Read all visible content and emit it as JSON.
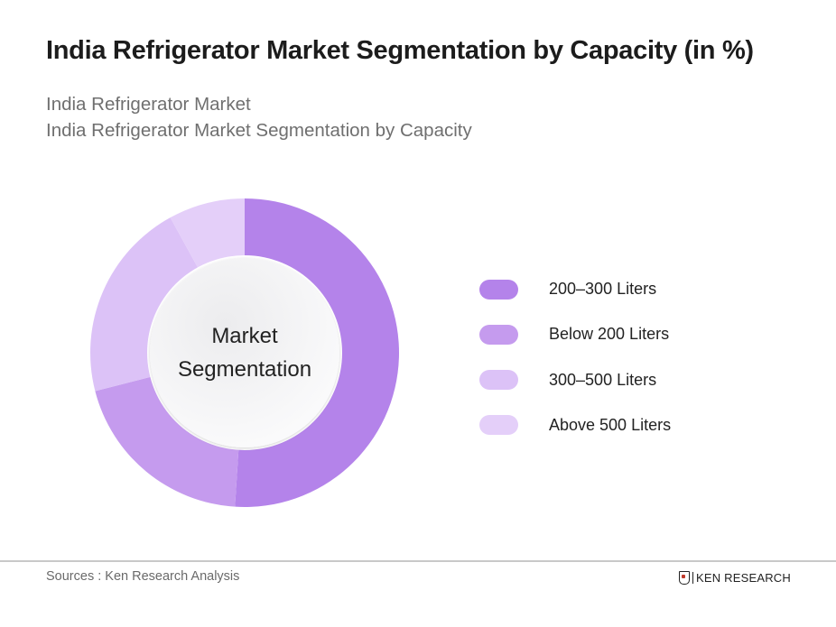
{
  "header": {
    "title": "India Refrigerator Market Segmentation by Capacity (in %)",
    "subtitle_line1": "India Refrigerator Market",
    "subtitle_line2": "India Refrigerator Market Segmentation by Capacity"
  },
  "chart": {
    "center_line1": "Market",
    "center_line2": "Segmentation"
  },
  "legend": [
    {
      "label": "200–300 Liters",
      "color": "#b483ea"
    },
    {
      "label": "Below 200 Liters",
      "color": "#c59bee"
    },
    {
      "label": "300–500 Liters",
      "color": "#dcc2f7"
    },
    {
      "label": "Above 500 Liters",
      "color": "#e4cff9"
    }
  ],
  "footer": {
    "sources": "Sources : Ken Research Analysis",
    "logo_text": "KEN RESEARCH"
  },
  "chart_data": {
    "type": "pie",
    "variant": "donut",
    "title": "India Refrigerator Market Segmentation by Capacity (in %)",
    "subtitle": "India Refrigerator Market — India Refrigerator Market Segmentation by Capacity",
    "center_text": "Market Segmentation",
    "categories": [
      "200–300 Liters",
      "Below 200 Liters",
      "300–500 Liters",
      "Above 500 Liters"
    ],
    "values": [
      51,
      20,
      21,
      8
    ],
    "colors": [
      "#b483ea",
      "#c59bee",
      "#dcc2f7",
      "#e4cff9"
    ],
    "unit": "%",
    "start_angle": "12 o'clock, clockwise",
    "legend_position": "right",
    "data_labels": false
  }
}
